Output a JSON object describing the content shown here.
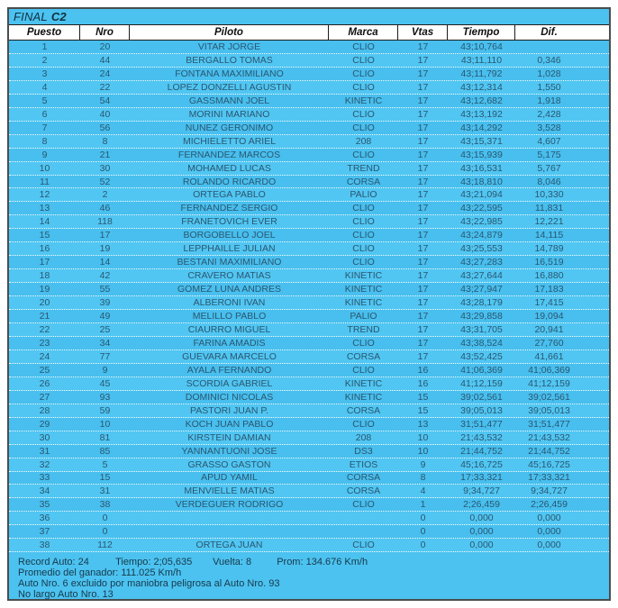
{
  "title": {
    "race": "FINAL",
    "class": "C2"
  },
  "columns": [
    "Puesto",
    "Nro",
    "Piloto",
    "Marca",
    "Vtas",
    "Tiempo",
    "Dif."
  ],
  "rows": [
    [
      "1",
      "20",
      "VITAR JORGE",
      "CLIO",
      "17",
      "43;10,764",
      ""
    ],
    [
      "2",
      "44",
      "BERGALLO TOMAS",
      "CLIO",
      "17",
      "43;11,110",
      "0,346"
    ],
    [
      "3",
      "24",
      "FONTANA MAXIMILIANO",
      "CLIO",
      "17",
      "43;11,792",
      "1,028"
    ],
    [
      "4",
      "22",
      "LOPEZ DONZELLI AGUSTIN",
      "CLIO",
      "17",
      "43;12,314",
      "1,550"
    ],
    [
      "5",
      "54",
      "GASSMANN JOEL",
      "KINETIC",
      "17",
      "43;12,682",
      "1,918"
    ],
    [
      "6",
      "40",
      "MORINI MARIANO",
      "CLIO",
      "17",
      "43;13,192",
      "2,428"
    ],
    [
      "7",
      "56",
      "NUNEZ GERONIMO",
      "CLIO",
      "17",
      "43;14,292",
      "3,528"
    ],
    [
      "8",
      "8",
      "MICHIELETTO ARIEL",
      "208",
      "17",
      "43;15,371",
      "4,607"
    ],
    [
      "9",
      "21",
      "FERNANDEZ MARCOS",
      "CLIO",
      "17",
      "43;15,939",
      "5,175"
    ],
    [
      "10",
      "30",
      "MOHAMED LUCAS",
      "TREND",
      "17",
      "43;16,531",
      "5,767"
    ],
    [
      "11",
      "52",
      "ROLANDO RICARDO",
      "CORSA",
      "17",
      "43;18,810",
      "8,046"
    ],
    [
      "12",
      "2",
      "ORTEGA PABLO",
      "PALIO",
      "17",
      "43;21,094",
      "10,330"
    ],
    [
      "13",
      "46",
      "FERNANDEZ SERGIO",
      "CLIO",
      "17",
      "43;22,595",
      "11,831"
    ],
    [
      "14",
      "118",
      "FRANETOVICH EVER",
      "CLIO",
      "17",
      "43;22,985",
      "12,221"
    ],
    [
      "15",
      "17",
      "BORGOBELLO JOEL",
      "CLIO",
      "17",
      "43;24,879",
      "14,115"
    ],
    [
      "16",
      "19",
      "LEPPHAILLE JULIAN",
      "CLIO",
      "17",
      "43;25,553",
      "14,789"
    ],
    [
      "17",
      "14",
      "BESTANI MAXIMILIANO",
      "CLIO",
      "17",
      "43;27,283",
      "16,519"
    ],
    [
      "18",
      "42",
      "CRAVERO MATIAS",
      "KINETIC",
      "17",
      "43;27,644",
      "16,880"
    ],
    [
      "19",
      "55",
      "GOMEZ LUNA ANDRES",
      "KINETIC",
      "17",
      "43;27,947",
      "17,183"
    ],
    [
      "20",
      "39",
      "ALBERONI IVAN",
      "KINETIC",
      "17",
      "43;28,179",
      "17,415"
    ],
    [
      "21",
      "49",
      "MELILLO PABLO",
      "PALIO",
      "17",
      "43;29,858",
      "19,094"
    ],
    [
      "22",
      "25",
      "CIAURRO MIGUEL",
      "TREND",
      "17",
      "43;31,705",
      "20,941"
    ],
    [
      "23",
      "34",
      "FARINA AMADIS",
      "CLIO",
      "17",
      "43;38,524",
      "27,760"
    ],
    [
      "24",
      "77",
      "GUEVARA MARCELO",
      "CORSA",
      "17",
      "43;52,425",
      "41,661"
    ],
    [
      "25",
      "9",
      "AYALA FERNANDO",
      "CLIO",
      "16",
      "41;06,369",
      "41;06,369"
    ],
    [
      "26",
      "45",
      "SCORDIA GABRIEL",
      "KINETIC",
      "16",
      "41;12,159",
      "41;12,159"
    ],
    [
      "27",
      "93",
      "DOMINICI NICOLAS",
      "KINETIC",
      "15",
      "39;02,561",
      "39;02,561"
    ],
    [
      "28",
      "59",
      "PASTORI JUAN P.",
      "CORSA",
      "15",
      "39;05,013",
      "39;05,013"
    ],
    [
      "29",
      "10",
      "KOCH JUAN PABLO",
      "CLIO",
      "13",
      "31;51,477",
      "31;51,477"
    ],
    [
      "30",
      "81",
      "KIRSTEIN DAMIAN",
      "208",
      "10",
      "21;43,532",
      "21;43,532"
    ],
    [
      "31",
      "85",
      "YANNANTUONI JOSE",
      "DS3",
      "10",
      "21;44,752",
      "21;44,752"
    ],
    [
      "32",
      "5",
      "GRASSO GASTON",
      "ETIOS",
      "9",
      "45;16,725",
      "45;16,725"
    ],
    [
      "33",
      "15",
      "APUD YAMIL",
      "CORSA",
      "8",
      "17;33,321",
      "17;33,321"
    ],
    [
      "34",
      "31",
      "MENVIELLE MATIAS",
      "CORSA",
      "4",
      "9;34,727",
      "9;34,727"
    ],
    [
      "35",
      "38",
      "VERDEGUER RODRIGO",
      "CLIO",
      "1",
      "2;26,459",
      "2;26,459"
    ],
    [
      "36",
      "0",
      "",
      "",
      "0",
      "0,000",
      "0,000"
    ],
    [
      "37",
      "0",
      "",
      "",
      "0",
      "0,000",
      "0,000"
    ],
    [
      "38",
      "112",
      "ORTEGA JUAN",
      "CLIO",
      "0",
      "0,000",
      "0,000"
    ]
  ],
  "footer": {
    "stats": [
      "Record Auto: 24",
      "Tiempo: 2;05,635",
      "Vuelta: 8",
      "Prom: 134.676 Km/h"
    ],
    "lines": [
      "Promedio del ganador: 111.025 Km/h",
      "Auto Nro. 6 excluido por maniobra peligrosa al Auto Nro. 93",
      "No largo Auto Nro. 13"
    ]
  },
  "colors": {
    "background_cyan": "#4CC2F0",
    "row_odd": "#48BFEE",
    "row_even": "#51C6F2",
    "header_bg": "#FFFFFF",
    "text_dark": "#2B5670",
    "border_dark": "#1D1D1D"
  }
}
